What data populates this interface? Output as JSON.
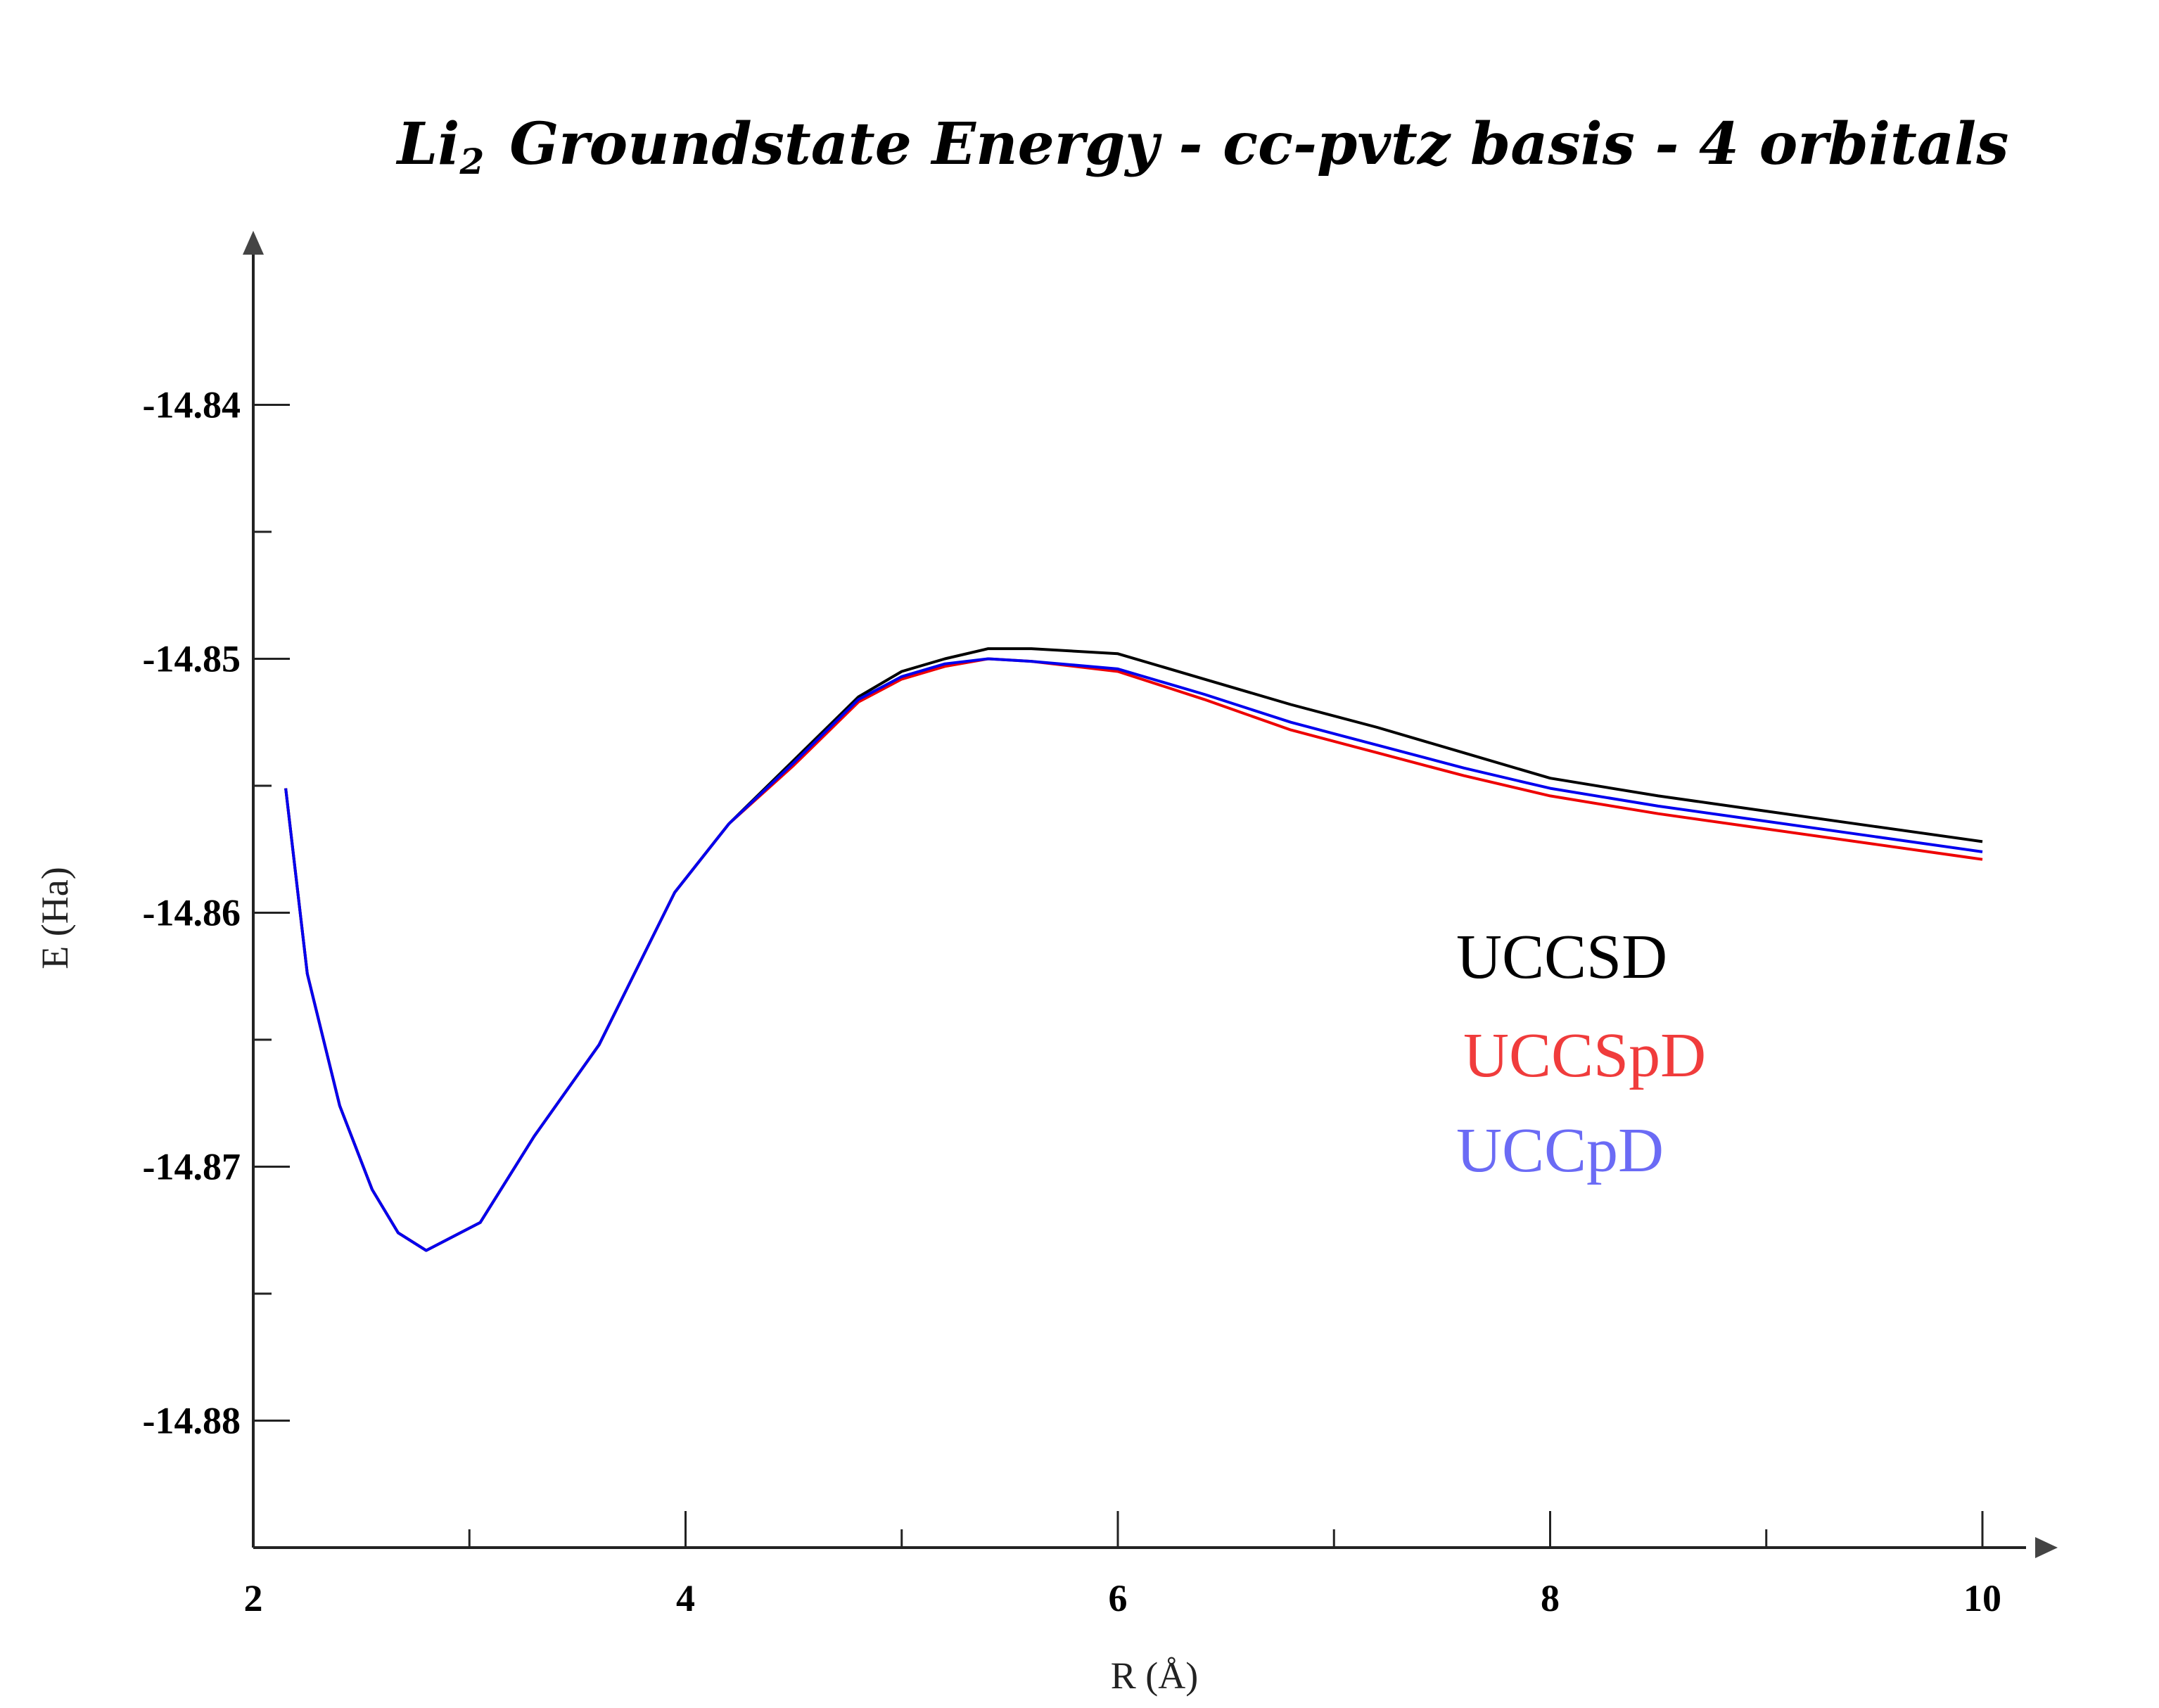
{
  "chart_data": {
    "type": "line",
    "title": {
      "main": "Li",
      "subscript": "2",
      "rest": "Groundstate Energy - cc-pvtz basis - 4 orbitals"
    },
    "xlabel": "R (Å)",
    "ylabel": "E (Ha)",
    "xlim": [
      2,
      10
    ],
    "ylim": [
      -14.885,
      -14.835
    ],
    "x_ticks": [
      2,
      4,
      6,
      8,
      10
    ],
    "x_tick_labels": [
      "2",
      "4",
      "6",
      "8",
      "10"
    ],
    "x_minor_ticks": [
      3,
      5,
      7,
      9
    ],
    "y_ticks": [
      -14.84,
      -14.85,
      -14.86,
      -14.87,
      -14.88
    ],
    "y_tick_labels": [
      "-14.84",
      "-14.85",
      "-14.86",
      "-14.87",
      "-14.88"
    ],
    "y_minor_ticks": [
      -14.845,
      -14.855,
      -14.865,
      -14.875
    ],
    "legend_position": "right",
    "series": [
      {
        "name": "UCCSD",
        "color": "#000000",
        "legend_color": "#000000",
        "x": [
          2.15,
          2.25,
          2.4,
          2.55,
          2.67,
          2.8,
          3.05,
          3.3,
          3.6,
          3.95,
          4.2,
          4.5,
          4.8,
          5.0,
          5.2,
          5.4,
          5.6,
          6.0,
          6.4,
          6.8,
          7.2,
          7.6,
          8.0,
          8.5,
          9.0,
          9.5,
          10.0
        ],
        "y": [
          -14.8551,
          -14.8624,
          -14.8676,
          -14.8709,
          -14.8726,
          -14.8733,
          -14.8722,
          -14.8688,
          -14.8652,
          -14.8592,
          -14.8565,
          -14.854,
          -14.8515,
          -14.8505,
          -14.85,
          -14.8496,
          -14.8496,
          -14.8498,
          -14.8508,
          -14.8518,
          -14.8527,
          -14.8537,
          -14.8547,
          -14.8554,
          -14.856,
          -14.8566,
          -14.8572
        ]
      },
      {
        "name": "UCCSpD",
        "color": "#ee0000",
        "legend_color": "#f03c3c",
        "x": [
          2.15,
          2.25,
          2.4,
          2.55,
          2.67,
          2.8,
          3.05,
          3.3,
          3.6,
          3.95,
          4.2,
          4.5,
          4.8,
          5.0,
          5.2,
          5.4,
          5.6,
          6.0,
          6.4,
          6.8,
          7.2,
          7.6,
          8.0,
          8.5,
          9.0,
          9.5,
          10.0
        ],
        "y": [
          -14.8551,
          -14.8624,
          -14.8676,
          -14.8709,
          -14.8726,
          -14.8733,
          -14.8722,
          -14.8688,
          -14.8652,
          -14.8592,
          -14.8565,
          -14.8542,
          -14.8517,
          -14.8508,
          -14.8503,
          -14.85,
          -14.8501,
          -14.8505,
          -14.8516,
          -14.8528,
          -14.8537,
          -14.8546,
          -14.8554,
          -14.8561,
          -14.8567,
          -14.8573,
          -14.8579
        ]
      },
      {
        "name": "UCCpD",
        "color": "#0000ee",
        "legend_color": "#6b6bf5",
        "x": [
          2.15,
          2.25,
          2.4,
          2.55,
          2.67,
          2.8,
          3.05,
          3.3,
          3.6,
          3.95,
          4.2,
          4.5,
          4.8,
          5.0,
          5.2,
          5.4,
          5.6,
          6.0,
          6.4,
          6.8,
          7.2,
          7.6,
          8.0,
          8.5,
          9.0,
          9.5,
          10.0
        ],
        "y": [
          -14.8551,
          -14.8624,
          -14.8676,
          -14.8709,
          -14.8726,
          -14.8733,
          -14.8722,
          -14.8688,
          -14.8652,
          -14.8592,
          -14.8565,
          -14.8541,
          -14.8516,
          -14.8507,
          -14.8502,
          -14.85,
          -14.8501,
          -14.8504,
          -14.8514,
          -14.8525,
          -14.8534,
          -14.8543,
          -14.8551,
          -14.8558,
          -14.8564,
          -14.857,
          -14.8576
        ]
      }
    ]
  }
}
